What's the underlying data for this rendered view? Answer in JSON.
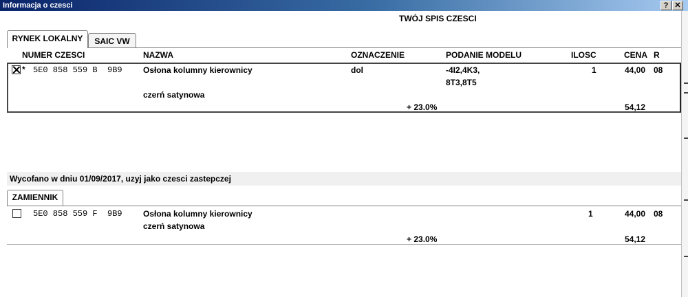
{
  "window": {
    "title": "Informacja o czesci",
    "help_label": "?",
    "close_label": "✕"
  },
  "list_title": "TWÓJ SPIS CZESCI",
  "tabs": [
    {
      "label": "RYNEK LOKALNY",
      "active": true
    },
    {
      "label": "SAIC VW",
      "active": false
    }
  ],
  "columns": {
    "numer": "NUMER CZESCI",
    "nazwa": "NAZWA",
    "oznaczenie": "OZNACZENIE",
    "podanie": "PODANIE MODELU",
    "ilosc": "ILOSC",
    "cena": "CENA",
    "r": "R"
  },
  "part": {
    "checked": true,
    "marker": "*",
    "number": "5E0 858 559 B  9B9",
    "name": "Osłona kolumny kierownicy",
    "name2": "czerń satynowa",
    "oznaczenie": "dol",
    "model_line1": "-4I2,4K3,",
    "model_line2": "8T3,8T5",
    "ilosc": "1",
    "cena": "44,00",
    "r": "08",
    "vat": "+ 23.0%",
    "cena_brutto": "54,12"
  },
  "notice": "Wycofano w dniu 01/09/2017, uzyj jako czesci zastepczej",
  "replacement_tab": "ZAMIENNIK",
  "replacement": {
    "checked": false,
    "number": "5E0 858 559 F  9B9",
    "name": "Osłona kolumny kierownicy",
    "name2": "czerń satynowa",
    "ilosc": "1",
    "cena": "44,00",
    "r": "08",
    "vat": "+ 23.0%",
    "cena_brutto": "54,12"
  }
}
